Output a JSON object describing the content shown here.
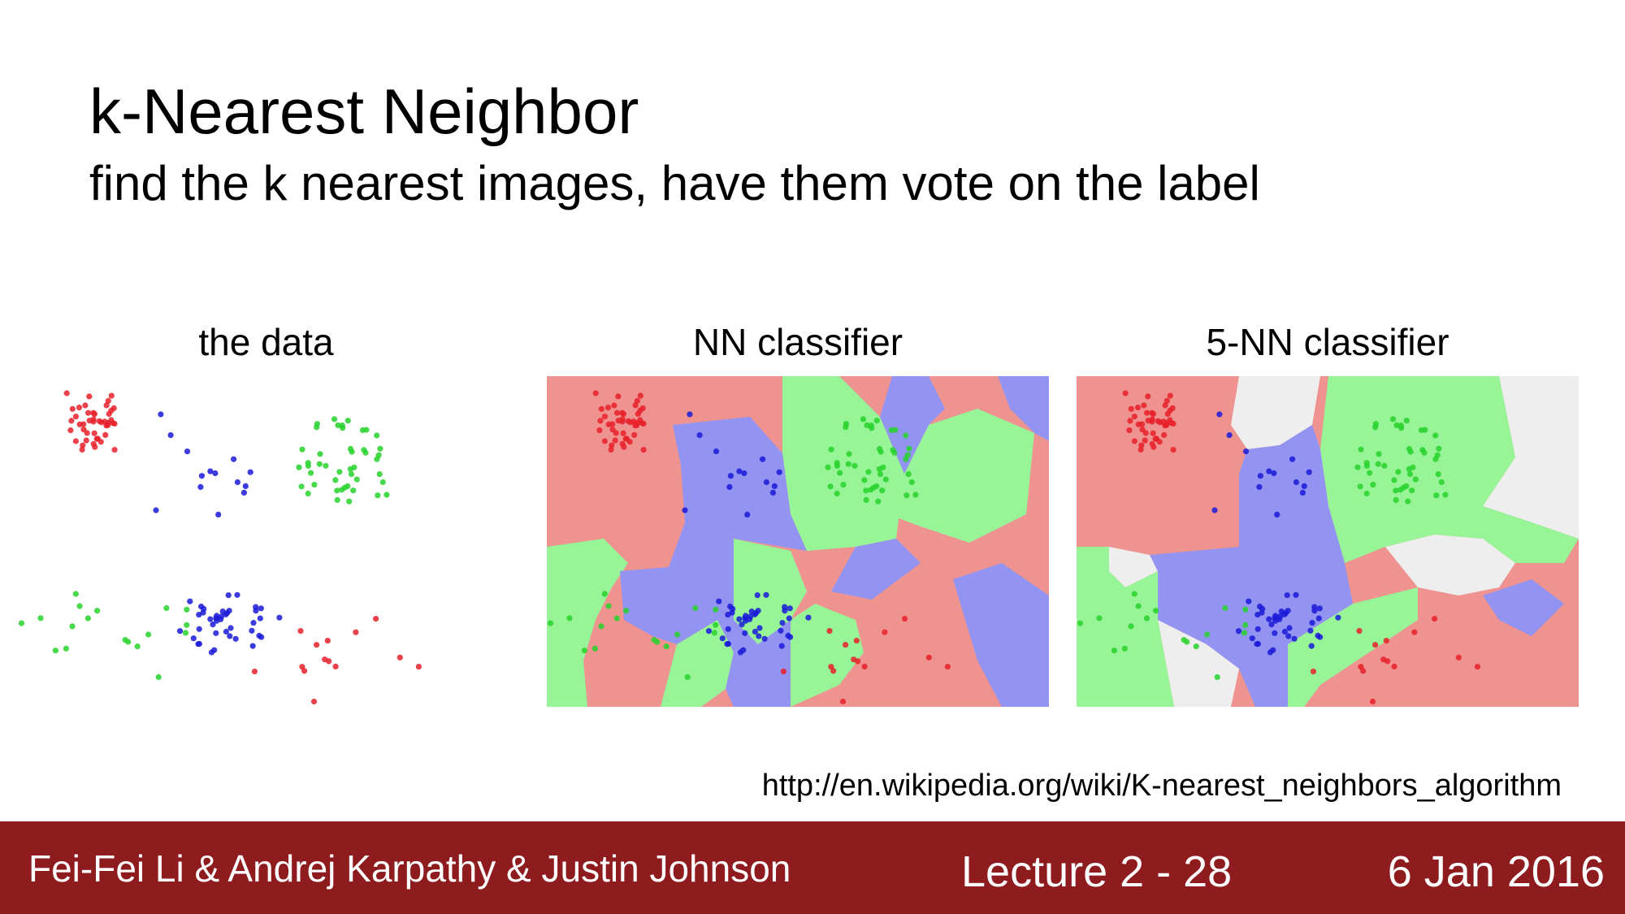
{
  "slide": {
    "title": "k-Nearest Neighbor",
    "subtitle": "find the k nearest images, have them vote on the label",
    "url": "http://en.wikipedia.org/wiki/K-nearest_neighbors_algorithm"
  },
  "panels": [
    {
      "title": "the data"
    },
    {
      "title": "NN classifier"
    },
    {
      "title": "5-NN classifier"
    }
  ],
  "footer": {
    "authors": "Fei-Fei Li & Andrej Karpathy & Justin Johnson",
    "lecture": "Lecture 2 - 28",
    "date": "6 Jan 2016"
  },
  "colors": {
    "footer_bg": "#8e1b1d",
    "red_region": "#ef9391",
    "green_region": "#97f597",
    "blue_region": "#9393f2",
    "tie_region": "#eeeeee",
    "red_point": "#e8202a",
    "green_point": "#27d22c",
    "blue_point": "#1a1ad8"
  }
}
